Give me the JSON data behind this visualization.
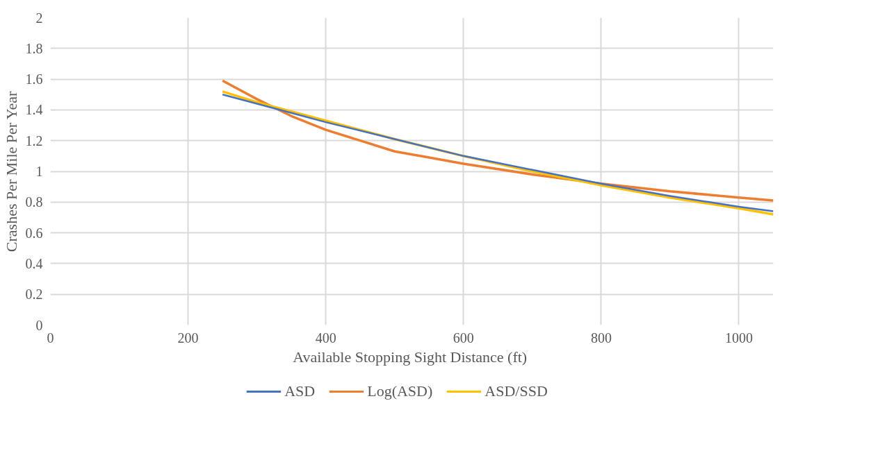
{
  "chart_data": {
    "type": "line",
    "xlabel": "Available  Stopping Sight Distance (ft)",
    "ylabel": "Crashes Per Mile Per Year",
    "xlim": [
      0,
      1050
    ],
    "xticks": [
      0,
      200,
      400,
      600,
      800,
      1000
    ],
    "ylim": [
      0,
      2
    ],
    "yticks": [
      0,
      0.2,
      0.4,
      0.6,
      0.8,
      1,
      1.2,
      1.4,
      1.6,
      1.8,
      2
    ],
    "grid": true,
    "legend": "bottom",
    "marker": "none",
    "line_style": "solid",
    "series": [
      {
        "name": "ASD",
        "color": "#4472c4",
        "x": [
          250,
          300,
          350,
          400,
          500,
          600,
          700,
          800,
          900,
          1000,
          1050
        ],
        "values": [
          1.5,
          1.44,
          1.38,
          1.32,
          1.21,
          1.1,
          1.01,
          0.92,
          0.84,
          0.77,
          0.74
        ]
      },
      {
        "name": "Log(ASD)",
        "color": "#ed7d31",
        "x": [
          250,
          300,
          350,
          400,
          450,
          500,
          550,
          600,
          700,
          800,
          900,
          1000,
          1050
        ],
        "values": [
          1.59,
          1.47,
          1.36,
          1.27,
          1.2,
          1.13,
          1.09,
          1.05,
          0.98,
          0.92,
          0.87,
          0.83,
          0.81
        ]
      },
      {
        "name": "ASD/SSD",
        "color": "#ffc000",
        "x": [
          250,
          300,
          400,
          500,
          600,
          700,
          800,
          900,
          1000,
          1050
        ],
        "values": [
          1.52,
          1.45,
          1.33,
          1.21,
          1.1,
          1.0,
          0.91,
          0.83,
          0.76,
          0.72
        ]
      }
    ]
  }
}
